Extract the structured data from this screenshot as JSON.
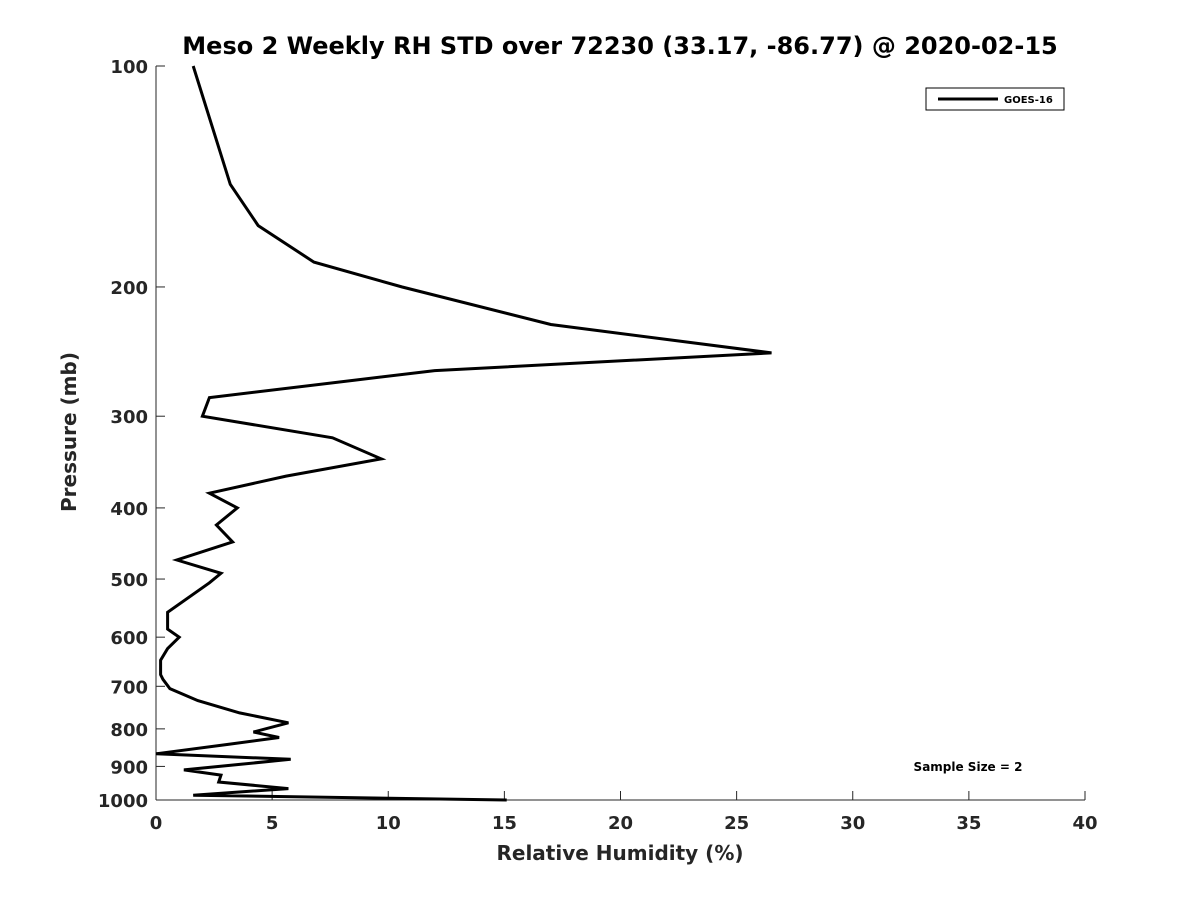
{
  "chart_data": {
    "type": "line",
    "title": "Meso 2 Weekly RH STD over 72230 (33.17, -86.77) @ 2020-02-15",
    "xlabel": "Relative Humidity (%)",
    "ylabel": "Pressure (mb)",
    "xlim": [
      0,
      40
    ],
    "ylim": [
      100,
      1000
    ],
    "yscale": "log",
    "y_reversed": true,
    "xticks": [
      0,
      5,
      10,
      15,
      20,
      25,
      30,
      35,
      40
    ],
    "xtick_labels": [
      "0",
      "5",
      "10",
      "15",
      "20",
      "25",
      "30",
      "35",
      "40"
    ],
    "yticks": [
      100,
      200,
      300,
      400,
      500,
      600,
      700,
      800,
      900,
      1000
    ],
    "ytick_labels": [
      "100",
      "200",
      "300",
      "400",
      "500",
      "600",
      "700",
      "800",
      "900",
      "1000"
    ],
    "grid": false,
    "legend_position": "top-right",
    "series": [
      {
        "name": "GOES-16",
        "color": "#000000",
        "x": [
          1.6,
          3.2,
          4.4,
          6.8,
          10.6,
          17.0,
          26.5,
          12.0,
          2.3,
          2.0,
          7.6,
          9.7,
          5.6,
          2.3,
          3.5,
          2.6,
          3.3,
          0.9,
          2.8,
          2.3,
          0.5,
          0.5,
          1.0,
          0.5,
          0.2,
          0.2,
          0.3,
          0.6,
          1.8,
          3.6,
          5.7,
          4.2,
          5.3,
          3.1,
          0.0,
          5.8,
          1.2,
          2.8,
          2.7,
          5.7,
          1.6,
          15.1
        ],
        "y": [
          100,
          145,
          165,
          185,
          200,
          225,
          246,
          260,
          283,
          300,
          321,
          343,
          362,
          382,
          400,
          422,
          445,
          471,
          491,
          506,
          555,
          585,
          600,
          622,
          645,
          675,
          685,
          705,
          732,
          761,
          785,
          808,
          822,
          840,
          865,
          880,
          910,
          925,
          945,
          965,
          985,
          1000
        ]
      }
    ],
    "annotations": [
      "Sample Size = 2"
    ]
  }
}
